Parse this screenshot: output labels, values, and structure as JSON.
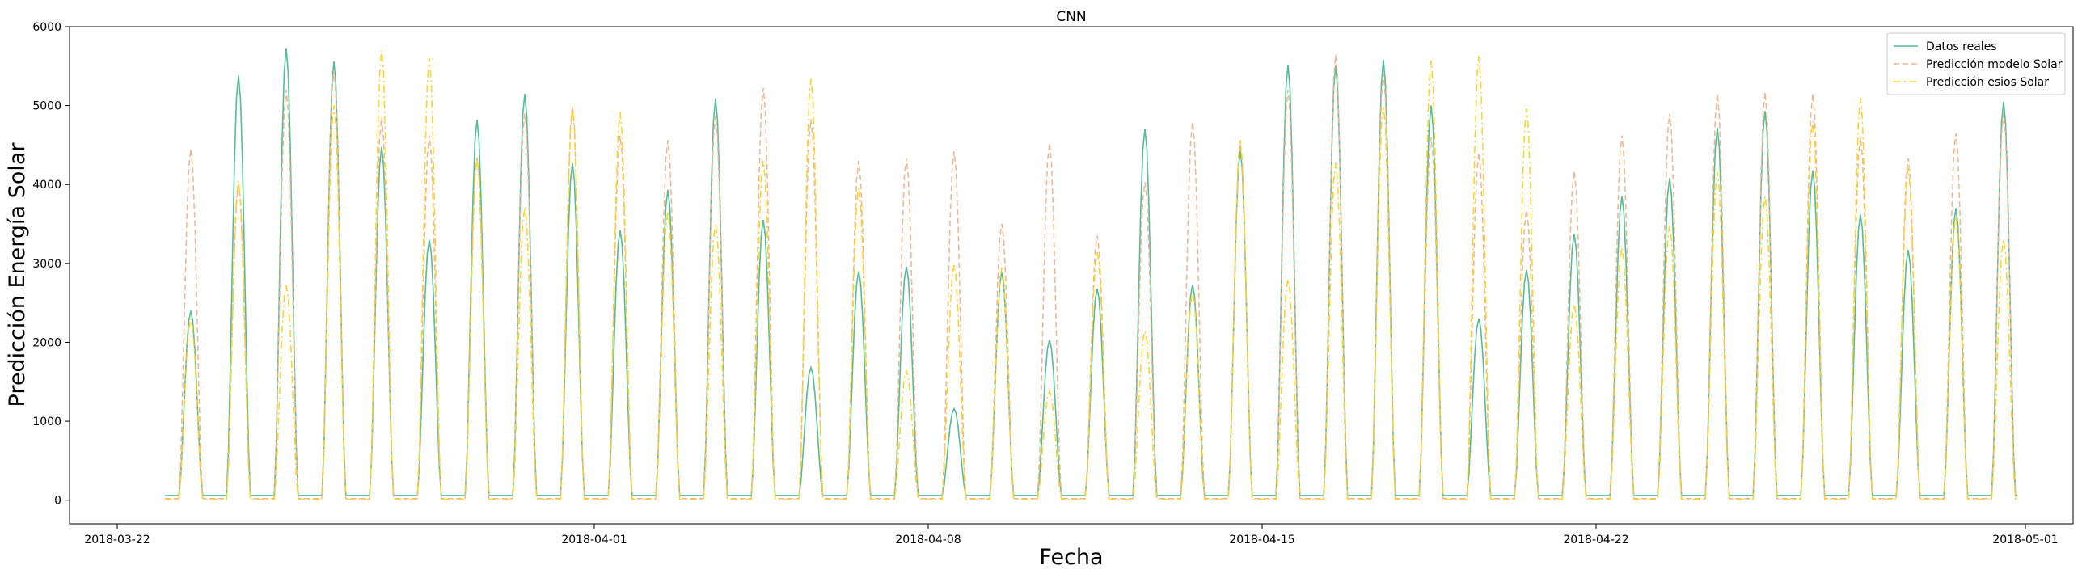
{
  "chart_data": {
    "type": "line",
    "title": "CNN",
    "xlabel": "Fecha",
    "ylabel": "Predicción Energía Solar",
    "xlim": [
      "2018-03-21",
      "2018-05-02"
    ],
    "ylim": [
      -300,
      6000
    ],
    "x_ticks": [
      "2018-03-22",
      "2018-04-01",
      "2018-04-08",
      "2018-04-15",
      "2018-04-22",
      "2018-05-01"
    ],
    "y_ticks": [
      0,
      1000,
      2000,
      3000,
      4000,
      5000,
      6000
    ],
    "grid": false,
    "legend_position": "top-right",
    "x_start": "2018-03-23",
    "x_end": "2018-04-30",
    "series": [
      {
        "name": "Datos reales",
        "color": "#52BE98",
        "style": "solid",
        "daily_peaks": [
          2400,
          5380,
          5730,
          5560,
          4480,
          3300,
          4820,
          5150,
          4270,
          3420,
          3930,
          5090,
          3550,
          1680,
          2900,
          2960,
          1160,
          2890,
          2030,
          2680,
          4700,
          2730,
          4430,
          5520,
          5510,
          5580,
          5000,
          2300,
          2920,
          3370,
          3850,
          4080,
          4720,
          4930,
          4180,
          3620,
          3170,
          3700,
          5050
        ]
      },
      {
        "name": "Predicción modelo Solar",
        "color": "#F2B48E",
        "style": "dashed",
        "daily_peaks": [
          4450,
          4000,
          5200,
          5450,
          4850,
          4620,
          4330,
          4900,
          5000,
          4620,
          4560,
          4870,
          5220,
          4830,
          4300,
          4330,
          4420,
          3500,
          4530,
          3350,
          4030,
          4790,
          4520,
          5200,
          5640,
          5400,
          4600,
          4400,
          3680,
          4170,
          4620,
          4900,
          5150,
          5170,
          5150,
          4600,
          4330,
          4650,
          4900
        ]
      },
      {
        "name": "Predicción esios Solar",
        "color": "#FFD21E",
        "style": "dashdot",
        "daily_peaks": [
          2300,
          4050,
          2720,
          5000,
          5700,
          5600,
          4340,
          3710,
          4970,
          4920,
          3660,
          3500,
          4300,
          5350,
          3970,
          1640,
          2980,
          2950,
          1380,
          3150,
          2140,
          2640,
          4560,
          2800,
          4280,
          5000,
          5570,
          5630,
          4960,
          2480,
          3200,
          3480,
          4160,
          3850,
          4800,
          5100,
          4200,
          3600,
          3300
        ]
      }
    ]
  }
}
